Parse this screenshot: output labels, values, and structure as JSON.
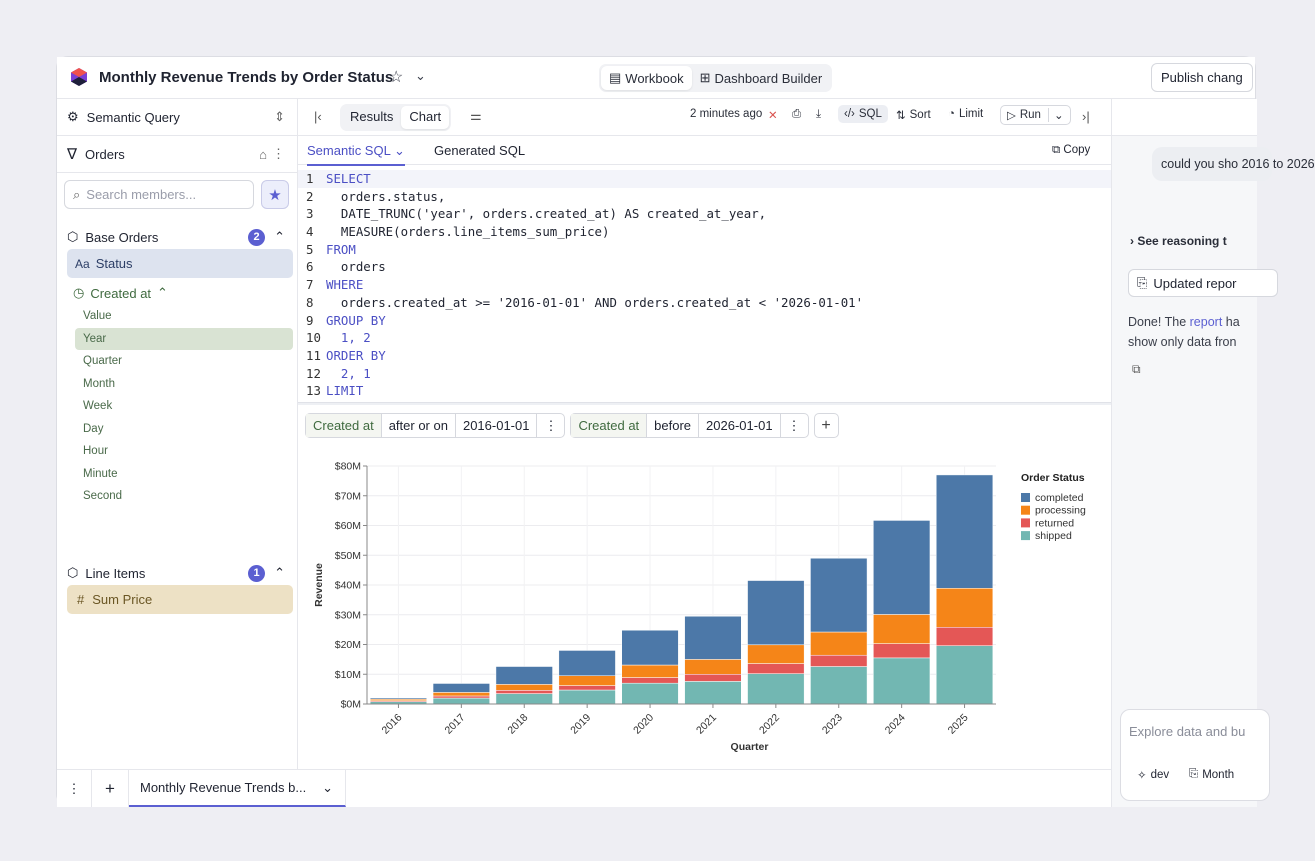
{
  "app": {
    "title": "Monthly Revenue Trends by Order Status",
    "publish_label": "Publish chang"
  },
  "modes": [
    {
      "label": "Workbook"
    },
    {
      "label": "Dashboard Builder"
    }
  ],
  "left": {
    "semantic_label": "Semantic Query",
    "cube_label": "Orders",
    "search_placeholder": "Search members...",
    "groups": [
      {
        "label": "Base Orders",
        "count": "2"
      },
      {
        "label": "Line Items",
        "count": "1"
      }
    ],
    "status_label": "Status",
    "status_icon_text": "Aa",
    "created_label": "Created at",
    "granularities": [
      "Value",
      "Year",
      "Quarter",
      "Month",
      "Week",
      "Day",
      "Hour",
      "Minute",
      "Second"
    ],
    "selected_granularity": "Year",
    "measure_label": "Sum Price"
  },
  "toolbar": {
    "tabs": [
      {
        "label": "Results"
      },
      {
        "label": "Chart"
      }
    ],
    "timestamp": "2 minutes ago",
    "sql_label": "SQL",
    "sort_label": "Sort",
    "limit_label": "Limit",
    "run_label": "Run"
  },
  "sql_tabs": {
    "semantic": "Semantic SQL",
    "generated": "Generated SQL",
    "copy": "Copy"
  },
  "code_lines": [
    "SELECT",
    "  orders.status,",
    "  DATE_TRUNC('year', orders.created_at) AS created_at_year,",
    "  MEASURE(orders.line_items_sum_price)",
    "FROM",
    "  orders",
    "WHERE",
    "  orders.created_at >= '2016-01-01' AND orders.created_at < '2026-01-01'",
    "GROUP BY",
    "  1, 2",
    "ORDER BY",
    "  2, 1",
    "LIMIT"
  ],
  "filters": [
    {
      "field": "Created at",
      "op": "after or on",
      "value": "2016-01-01"
    },
    {
      "field": "Created at",
      "op": "before",
      "value": "2026-01-01"
    }
  ],
  "chart_data": {
    "type": "bar",
    "stacked": true,
    "xlabel": "Quarter",
    "ylabel": "Revenue",
    "ylim": [
      0,
      80
    ],
    "yticks": [
      "$0M",
      "$10M",
      "$20M",
      "$30M",
      "$40M",
      "$50M",
      "$60M",
      "$70M",
      "$80M"
    ],
    "categories": [
      "2016",
      "2017",
      "2018",
      "2019",
      "2020",
      "2021",
      "2022",
      "2023",
      "2024",
      "2025"
    ],
    "legend_title": "Order Status",
    "legend_position": "top-right",
    "series": [
      {
        "name": "shipped",
        "color": "#72b7b2",
        "values": [
          0.8,
          2,
          3.5,
          4.7,
          7,
          7.6,
          10.2,
          12.6,
          15.5,
          19.6
        ]
      },
      {
        "name": "returned",
        "color": "#e45756",
        "values": [
          0.3,
          0.7,
          1.1,
          1.5,
          1.9,
          2.4,
          3.4,
          3.8,
          4.8,
          6.2
        ]
      },
      {
        "name": "processing",
        "color": "#f58518",
        "values": [
          0.5,
          1.2,
          2,
          3.3,
          4.2,
          5,
          6.3,
          7.8,
          9.8,
          13.1
        ]
      },
      {
        "name": "completed",
        "color": "#4c78a8",
        "values": [
          0.4,
          3,
          6,
          8.5,
          11.7,
          14.5,
          21.6,
          24.8,
          31.6,
          38.1
        ]
      }
    ]
  },
  "chat": {
    "user_message": "could you sho 2016 to 2026",
    "reasoning": "See reasoning t",
    "updated": "Updated repor",
    "done_prefix": "Done! The",
    "done_link": "report",
    "done_suffix": "ha",
    "done_line2": "show only data fron",
    "input_placeholder": "Explore data and bu",
    "agent_label": "dev",
    "context_label": "Month"
  },
  "bottom_tab": "Monthly Revenue Trends b..."
}
